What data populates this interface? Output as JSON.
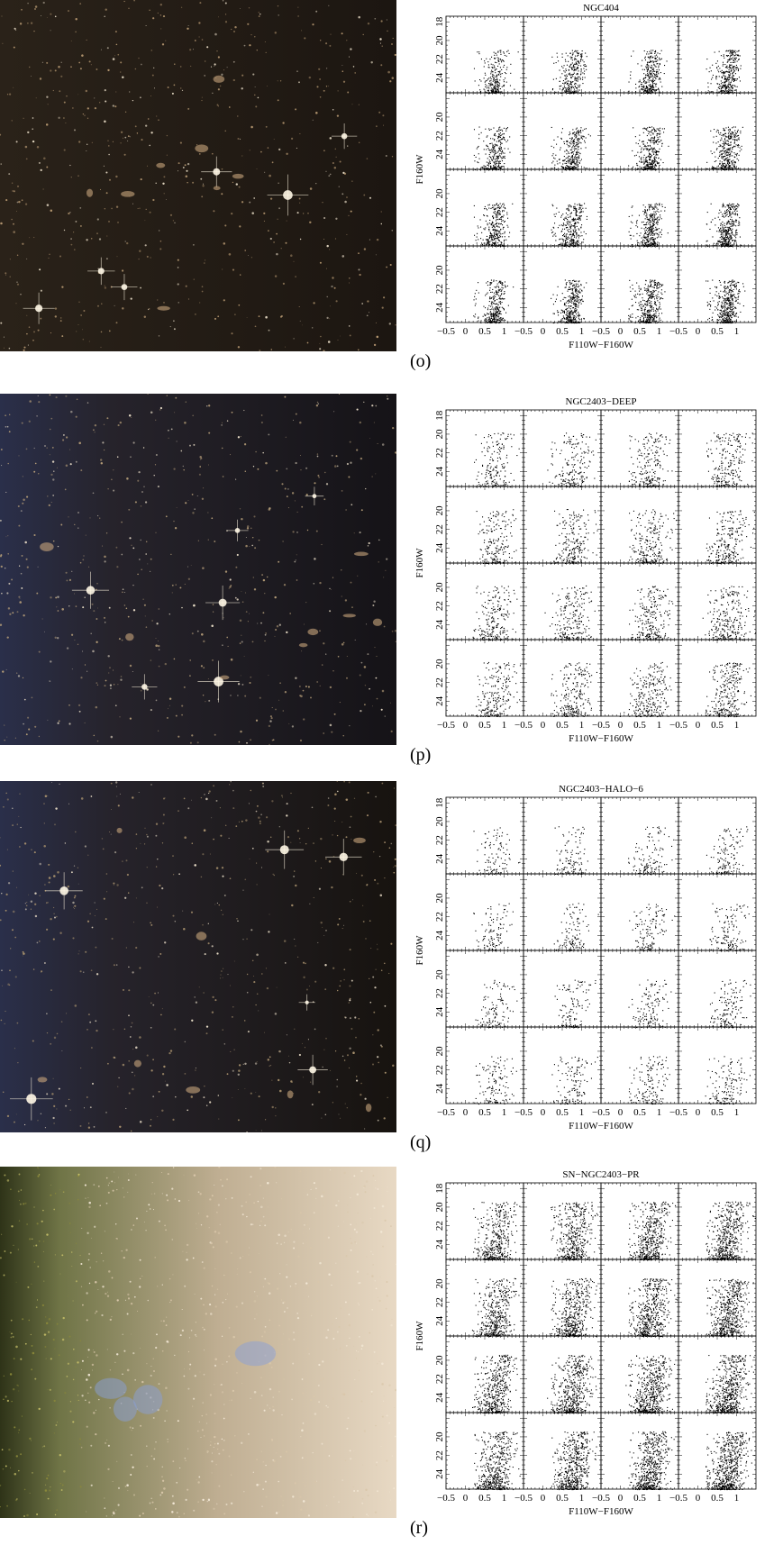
{
  "figure": {
    "panels": [
      {
        "letter": "(o)",
        "image": {
          "kind": "dark",
          "bg": "#1c1611",
          "accent": "#b59770"
        },
        "chart_data": {
          "type": "scatter",
          "title": "NGC404",
          "xlabel": "F110W−F160W",
          "ylabel": "F160W",
          "grid": "4x4",
          "xlim": [
            -0.5,
            1.5
          ],
          "ylim": [
            25.6,
            17.4
          ],
          "x_ticks": [
            "−0.5",
            "0",
            "0.5",
            "1"
          ],
          "y_ticks_top": [
            "18",
            "20",
            "22",
            "24"
          ],
          "y_ticks_rest": [
            "20",
            "22",
            "24"
          ],
          "cmd": {
            "density": 340,
            "spread": 0.13,
            "tilt": 0.13,
            "top": 21.0
          }
        }
      },
      {
        "letter": "(p)",
        "image": {
          "kind": "mixed",
          "bg": "#151317",
          "accent": "#b59d78"
        },
        "chart_data": {
          "type": "scatter",
          "title": "NGC2403−DEEP",
          "xlabel": "F110W−F160W",
          "ylabel": "F160W",
          "grid": "4x4",
          "xlim": [
            -0.5,
            1.5
          ],
          "ylim": [
            25.6,
            17.4
          ],
          "x_ticks": [
            "−0.5",
            "0",
            "0.5",
            "1"
          ],
          "y_ticks_top": [
            "18",
            "20",
            "22",
            "24"
          ],
          "y_ticks_rest": [
            "20",
            "22",
            "24"
          ],
          "cmd": {
            "density": 230,
            "spread": 0.22,
            "tilt": 0.14,
            "top": 19.8
          }
        }
      },
      {
        "letter": "(q)",
        "image": {
          "kind": "mixed",
          "bg": "#17130f",
          "accent": "#a8916d"
        },
        "chart_data": {
          "type": "scatter",
          "title": "NGC2403−HALO−6",
          "xlabel": "F110W−F160W",
          "ylabel": "F160W",
          "grid": "4x4",
          "xlim": [
            -0.5,
            1.5
          ],
          "ylim": [
            25.6,
            17.4
          ],
          "x_ticks": [
            "−0.5",
            "0",
            "0.5",
            "1"
          ],
          "y_ticks_top": [
            "18",
            "20",
            "22",
            "24"
          ],
          "y_ticks_rest": [
            "20",
            "22",
            "24"
          ],
          "cmd": {
            "density": 130,
            "spread": 0.2,
            "tilt": 0.14,
            "top": 20.5
          }
        }
      },
      {
        "letter": "(r)",
        "image": {
          "kind": "bright",
          "bg": "#c9b69e",
          "accent": "#4d5a2c"
        },
        "chart_data": {
          "type": "scatter",
          "title": "SN−NGC2403−PR",
          "xlabel": "F110W−F160W",
          "ylabel": "F160W",
          "grid": "4x4",
          "xlim": [
            -0.5,
            1.5
          ],
          "ylim": [
            25.6,
            17.4
          ],
          "x_ticks": [
            "−0.5",
            "0",
            "0.5",
            "1"
          ],
          "y_ticks_top": [
            "18",
            "20",
            "22",
            "24"
          ],
          "y_ticks_rest": [
            "20",
            "22",
            "24"
          ],
          "cmd": {
            "density": 520,
            "spread": 0.2,
            "tilt": 0.16,
            "top": 19.4
          }
        }
      }
    ]
  }
}
